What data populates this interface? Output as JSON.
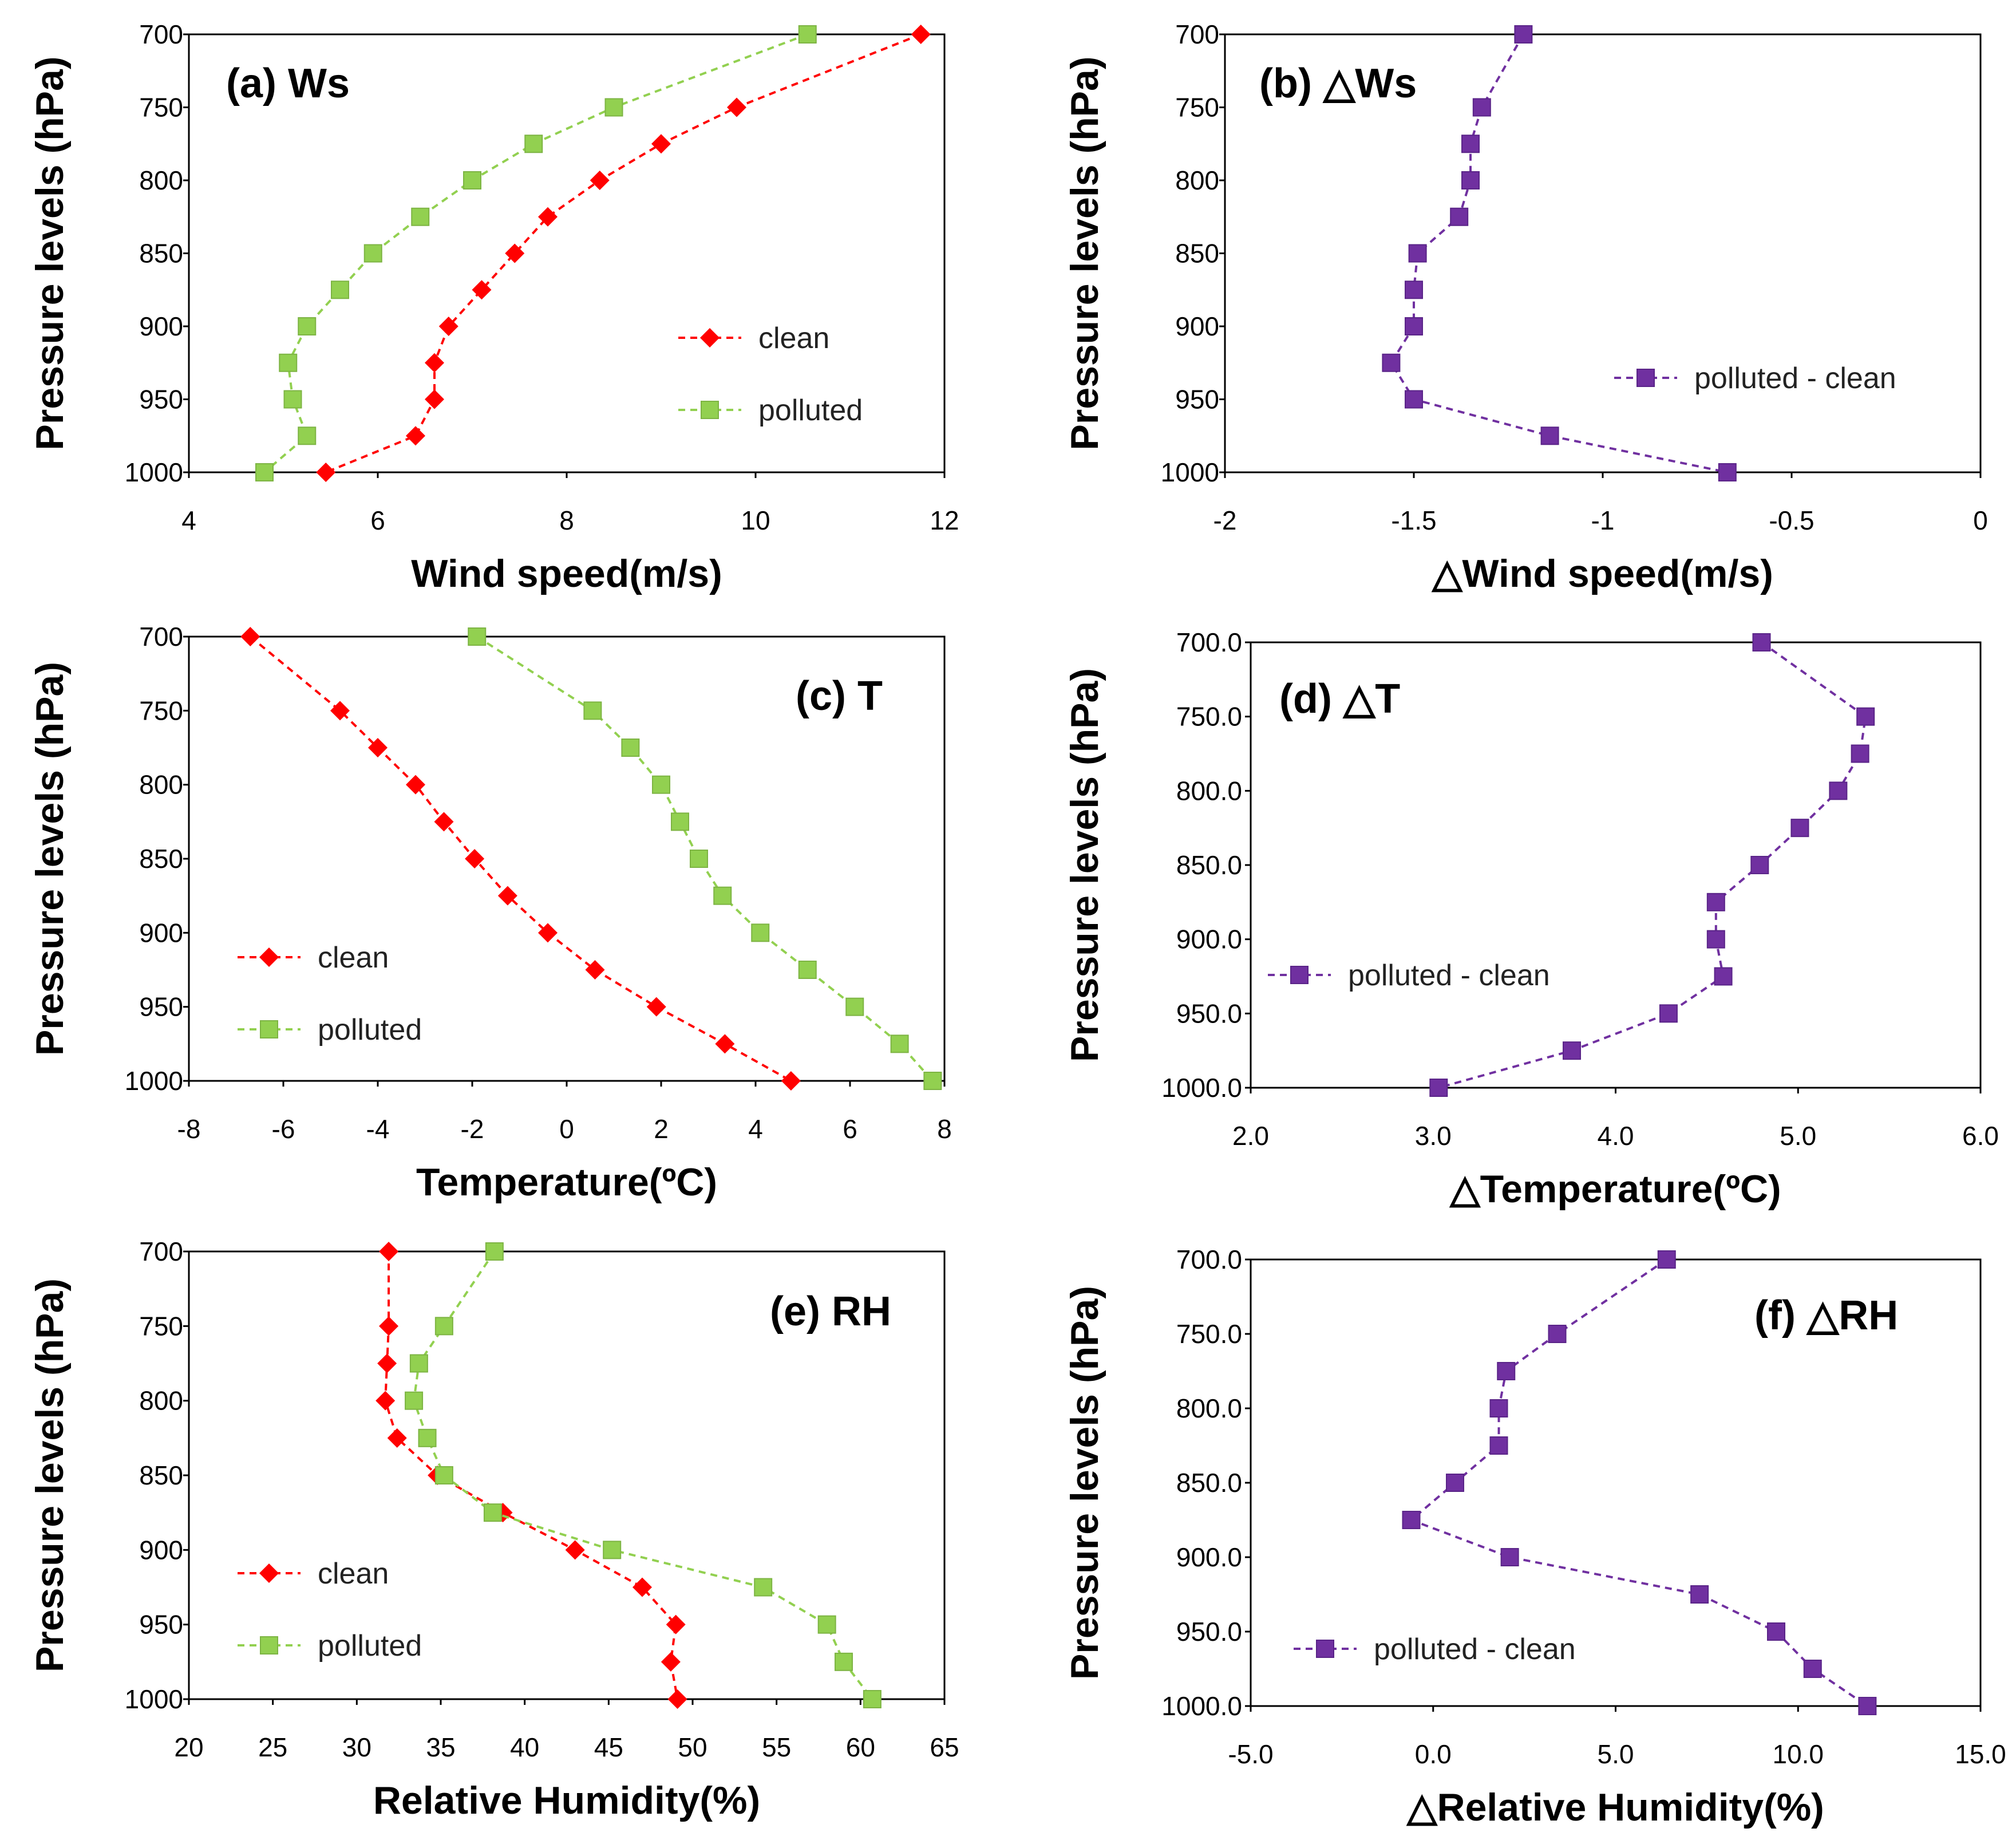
{
  "chart_data": [
    {
      "id": "a",
      "type": "line",
      "title": "(a) Ws",
      "xlabel": "Wind speed(m/s)",
      "ylabel": "Pressure levels (hPa)",
      "xlim": [
        4,
        12
      ],
      "xticks": [
        "4",
        "6",
        "8",
        "10",
        "12"
      ],
      "ylim": [
        700,
        1000
      ],
      "yticks": [
        "700",
        "750",
        "800",
        "850",
        "900",
        "950",
        "1000"
      ],
      "y": [
        700,
        750,
        775,
        800,
        825,
        850,
        875,
        900,
        925,
        950,
        975,
        1000
      ],
      "legend_position": "right-middle",
      "series": [
        {
          "name": "clean",
          "color": "#ff0000",
          "marker": "diamond",
          "values": [
            11.75,
            9.8,
            9.0,
            8.35,
            7.8,
            7.45,
            7.1,
            6.75,
            6.6,
            6.6,
            6.4,
            5.45
          ]
        },
        {
          "name": "polluted",
          "color": "#92d050",
          "marker": "square",
          "values": [
            10.55,
            8.5,
            7.65,
            7.0,
            6.45,
            5.95,
            5.6,
            5.25,
            5.05,
            5.1,
            5.25,
            4.8
          ]
        }
      ]
    },
    {
      "id": "b",
      "type": "line",
      "title": "(b) △Ws",
      "xlabel": "△Wind speed(m/s)",
      "ylabel": "Pressure levels (hPa)",
      "xlim": [
        -2,
        0
      ],
      "xticks": [
        "-2",
        "-1.5",
        "-1",
        "-0.5",
        "0"
      ],
      "ylim": [
        700,
        1000
      ],
      "yticks": [
        "700",
        "750",
        "800",
        "850",
        "900",
        "950",
        "1000"
      ],
      "y": [
        700,
        750,
        775,
        800,
        825,
        850,
        875,
        900,
        925,
        950,
        975,
        1000
      ],
      "legend_position": "right-middle",
      "series": [
        {
          "name": "polluted - clean",
          "color": "#7030a0",
          "marker": "square",
          "values": [
            -1.21,
            -1.32,
            -1.35,
            -1.35,
            -1.38,
            -1.49,
            -1.5,
            -1.5,
            -1.56,
            -1.5,
            -1.14,
            -0.67
          ]
        }
      ]
    },
    {
      "id": "c",
      "type": "line",
      "title": "(c) T",
      "xlabel": "Temperature(ºC)",
      "ylabel": "Pressure levels (hPa)",
      "xlim": [
        -8,
        8
      ],
      "xticks": [
        "-8",
        "-6",
        "-4",
        "-2",
        "0",
        "2",
        "4",
        "6",
        "8"
      ],
      "ylim": [
        700,
        1000
      ],
      "yticks": [
        "700",
        "750",
        "800",
        "850",
        "900",
        "950",
        "1000"
      ],
      "y": [
        700,
        750,
        775,
        800,
        825,
        850,
        875,
        900,
        925,
        950,
        975,
        1000
      ],
      "legend_position": "left-lower",
      "series": [
        {
          "name": "clean",
          "color": "#ff0000",
          "marker": "diamond",
          "values": [
            -6.7,
            -4.8,
            -4.0,
            -3.2,
            -2.6,
            -1.95,
            -1.25,
            -0.4,
            0.6,
            1.9,
            3.35,
            4.75
          ]
        },
        {
          "name": "polluted",
          "color": "#92d050",
          "marker": "square",
          "values": [
            -1.9,
            0.55,
            1.35,
            2.0,
            2.4,
            2.8,
            3.3,
            4.1,
            5.1,
            6.1,
            7.05,
            7.75
          ]
        }
      ]
    },
    {
      "id": "d",
      "type": "line",
      "title": "(d) △T",
      "xlabel": "△Temperature(ºC)",
      "ylabel": "Pressure levels (hPa)",
      "xlim": [
        2.0,
        6.0
      ],
      "xticks": [
        "2.0",
        "3.0",
        "4.0",
        "5.0",
        "6.0"
      ],
      "ylim": [
        700,
        1000
      ],
      "yticks": [
        "700.0",
        "750.0",
        "800.0",
        "850.0",
        "900.0",
        "950.0",
        "1000.0"
      ],
      "y": [
        700,
        750,
        775,
        800,
        825,
        850,
        875,
        900,
        925,
        950,
        975,
        1000
      ],
      "legend_position": "left-middle",
      "series": [
        {
          "name": "polluted - clean",
          "color": "#7030a0",
          "marker": "square",
          "values": [
            4.8,
            5.37,
            5.34,
            5.22,
            5.01,
            4.79,
            4.55,
            4.55,
            4.59,
            4.29,
            3.76,
            3.03
          ]
        }
      ]
    },
    {
      "id": "e",
      "type": "line",
      "title": "(e) RH",
      "xlabel": "Relative Humidity(%)",
      "ylabel": "Pressure levels (hPa)",
      "xlim": [
        20,
        65
      ],
      "xticks": [
        "20",
        "25",
        "30",
        "35",
        "40",
        "45",
        "50",
        "55",
        "60",
        "65"
      ],
      "ylim": [
        700,
        1000
      ],
      "yticks": [
        "700",
        "750",
        "800",
        "850",
        "900",
        "950",
        "1000"
      ],
      "y": [
        700,
        750,
        775,
        800,
        825,
        850,
        875,
        900,
        925,
        950,
        975,
        1000
      ],
      "legend_position": "left-lower",
      "series": [
        {
          "name": "clean",
          "color": "#ff0000",
          "marker": "diamond",
          "values": [
            31.9,
            31.9,
            31.8,
            31.7,
            32.4,
            34.8,
            38.7,
            43.0,
            47.0,
            49.0,
            48.7,
            49.1
          ]
        },
        {
          "name": "polluted",
          "color": "#92d050",
          "marker": "square",
          "values": [
            38.2,
            35.2,
            33.7,
            33.4,
            34.2,
            35.2,
            38.1,
            45.2,
            54.2,
            58.0,
            59.0,
            60.7
          ]
        }
      ]
    },
    {
      "id": "f",
      "type": "line",
      "title": "(f) △RH",
      "xlabel": "△Relative Humidity(%)",
      "ylabel": "Pressure levels (hPa)",
      "xlim": [
        -5.0,
        15.0
      ],
      "xticks": [
        "-5.0",
        "0.0",
        "5.0",
        "10.0",
        "15.0"
      ],
      "ylim": [
        700,
        1000
      ],
      "yticks": [
        "700.0",
        "750.0",
        "800.0",
        "850.0",
        "900.0",
        "950.0",
        "1000.0"
      ],
      "y": [
        700,
        750,
        775,
        800,
        825,
        850,
        875,
        900,
        925,
        950,
        975,
        1000
      ],
      "legend_position": "left-lower",
      "series": [
        {
          "name": "polluted - clean",
          "color": "#7030a0",
          "marker": "square",
          "values": [
            6.4,
            3.4,
            2.0,
            1.8,
            1.8,
            0.6,
            -0.6,
            2.1,
            7.3,
            9.4,
            10.4,
            11.9
          ]
        }
      ]
    }
  ]
}
